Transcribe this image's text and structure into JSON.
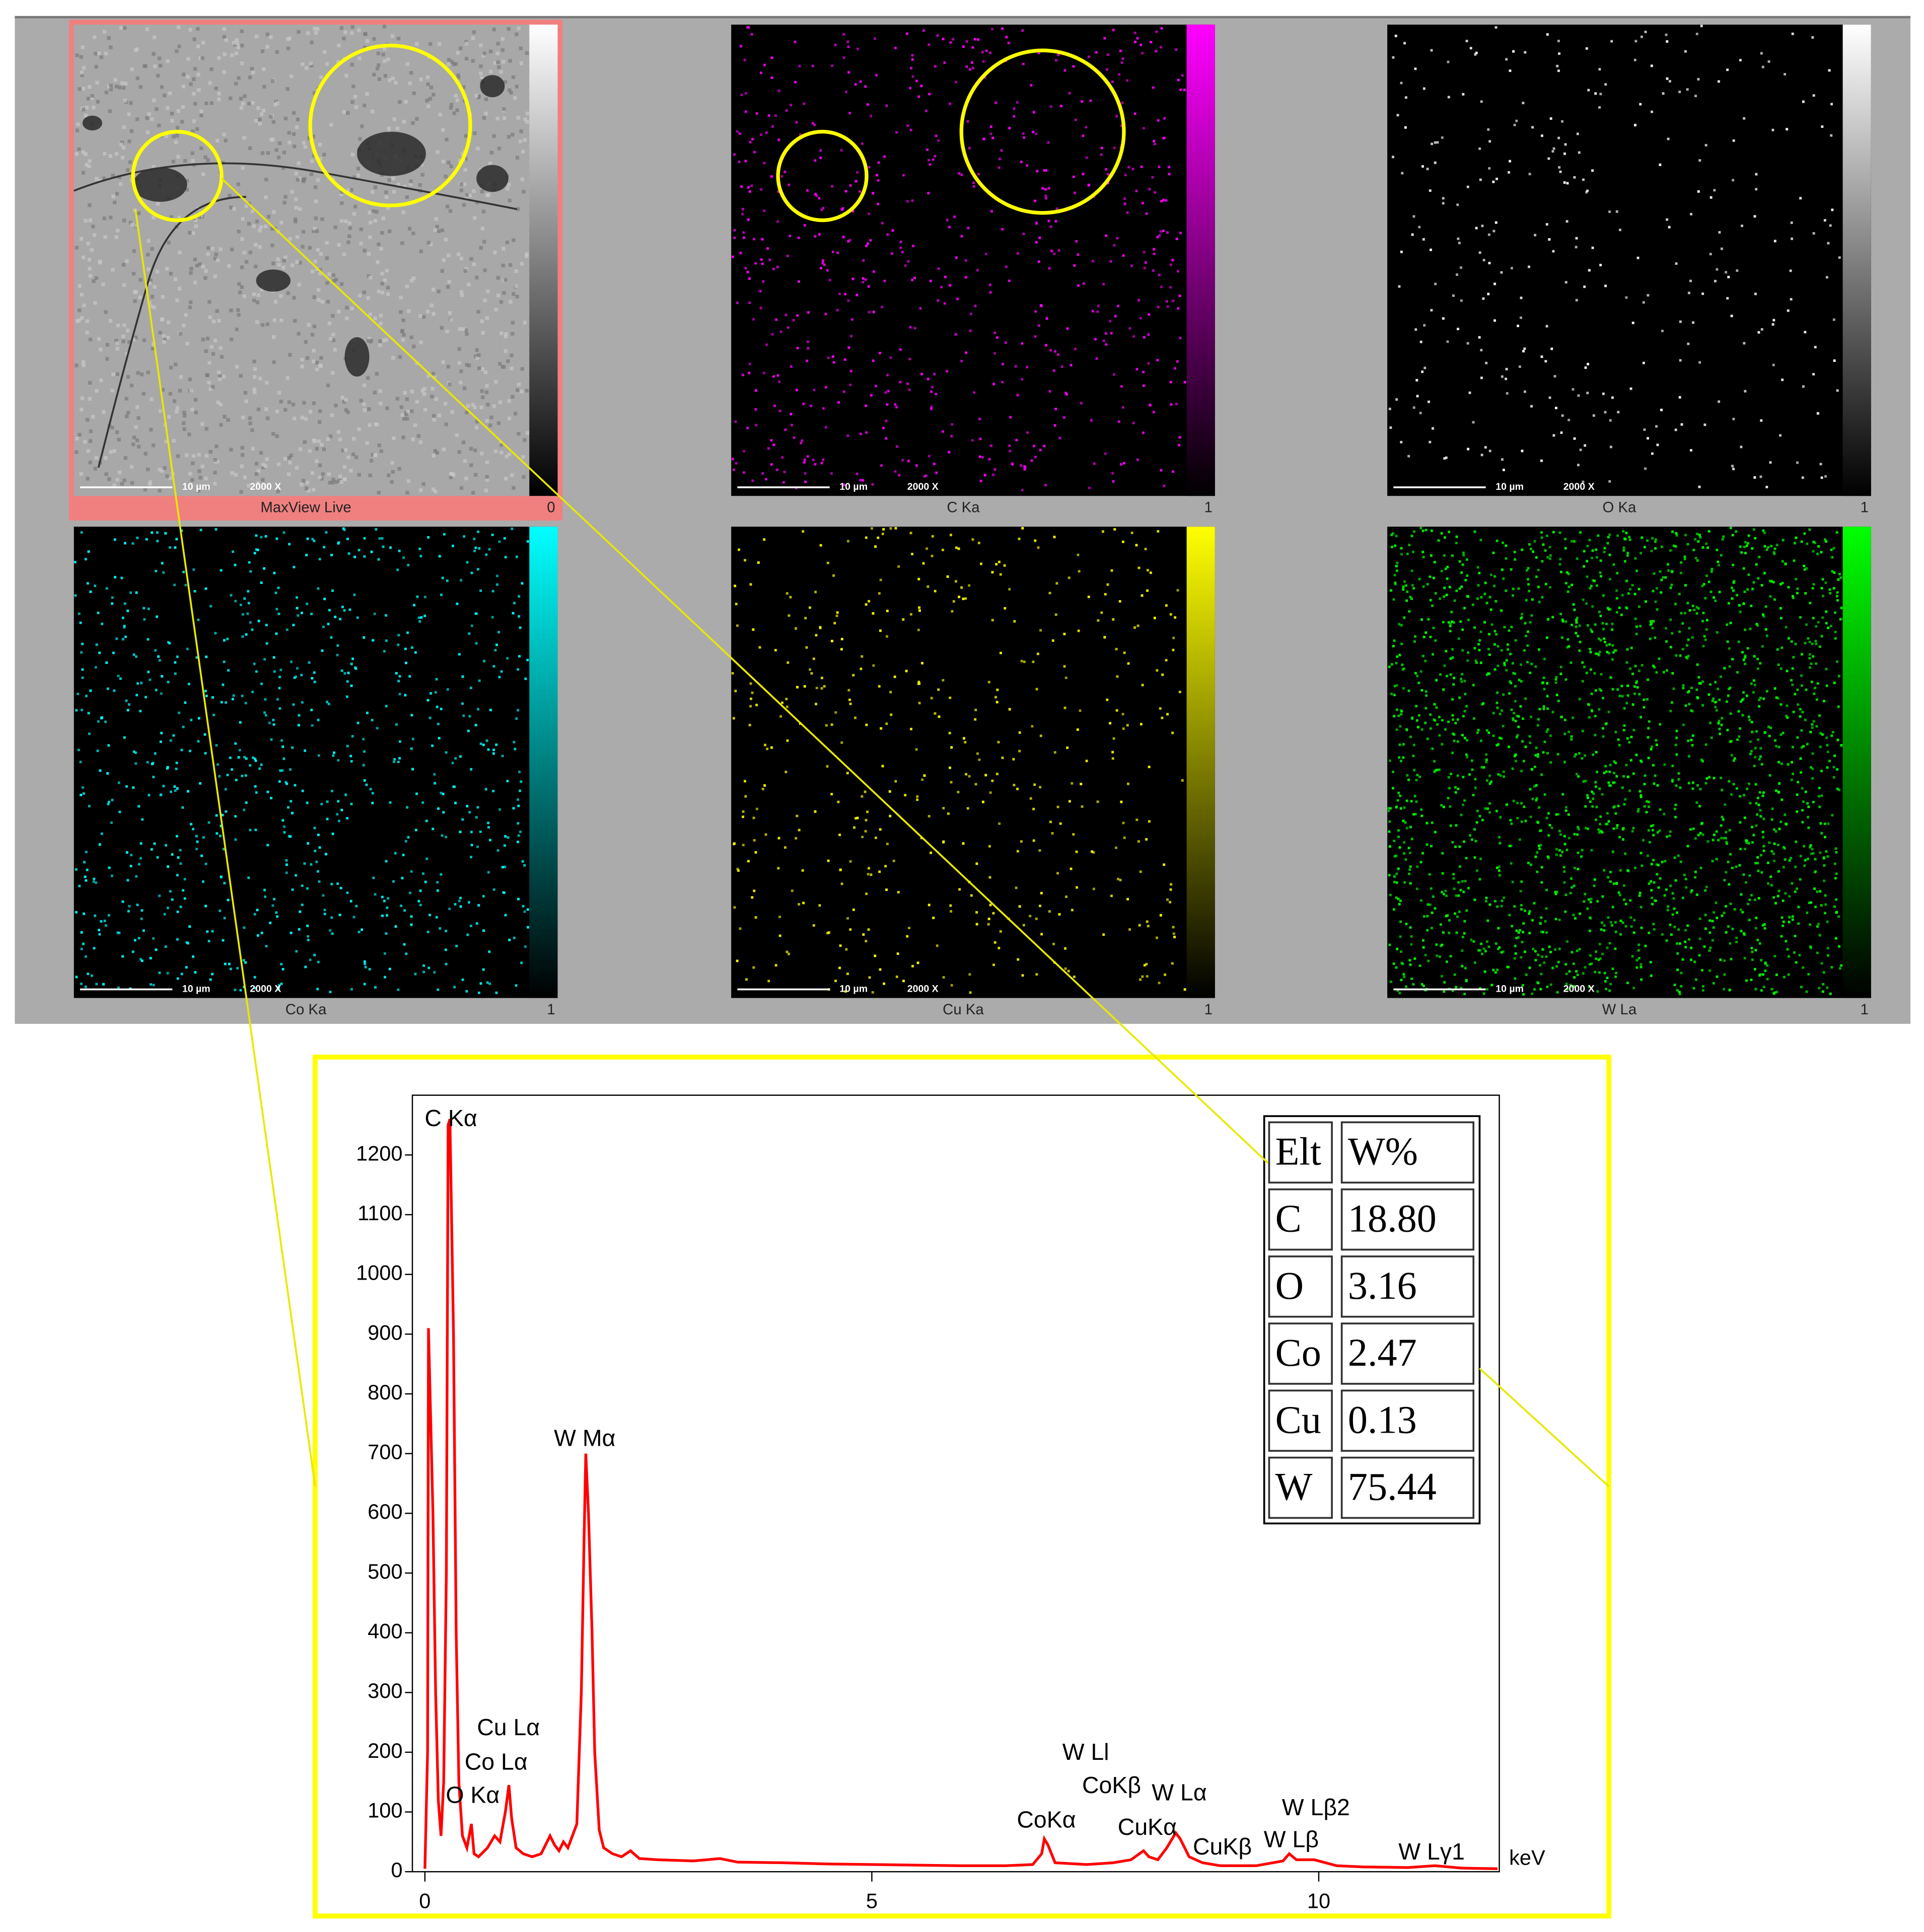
{
  "maps": [
    {
      "label": "MaxView Live",
      "max": "0",
      "color": "#ffffff",
      "scale": "10 µm",
      "magnification": "2000 X"
    },
    {
      "label": "C  Ka",
      "max": "1",
      "color": "#ff00ff",
      "scale": "10 µm",
      "magnification": "2000 X"
    },
    {
      "label": "O  Ka",
      "max": "1",
      "color": "#ffffff",
      "scale": "10 µm",
      "magnification": "2000 X"
    },
    {
      "label": "Co Ka",
      "max": "1",
      "color": "#00ffff",
      "scale": "10 µm",
      "magnification": "2000 X"
    },
    {
      "label": "Cu Ka",
      "max": "1",
      "color": "#ffff00",
      "scale": "10 µm",
      "magnification": "2000 X"
    },
    {
      "label": "W  La",
      "max": "1",
      "color": "#00ff00",
      "scale": "10 µm",
      "magnification": "2000 X"
    }
  ],
  "table": {
    "header": [
      "Elt",
      "W%"
    ],
    "rows": [
      [
        "C",
        "18.80"
      ],
      [
        "O",
        "3.16"
      ],
      [
        "Co",
        "2.47"
      ],
      [
        "Cu",
        "0.13"
      ],
      [
        "W",
        "75.44"
      ]
    ]
  },
  "chart_data": {
    "type": "line",
    "x_label": "keV",
    "color": "#ff0000",
    "x": [
      0.0,
      0.03,
      0.04,
      0.09,
      0.12,
      0.15,
      0.18,
      0.21,
      0.24,
      0.26,
      0.28,
      0.32,
      0.35,
      0.38,
      0.42,
      0.47,
      0.52,
      0.55,
      0.6,
      0.7,
      0.78,
      0.84,
      0.9,
      0.94,
      0.97,
      1.02,
      1.1,
      1.2,
      1.3,
      1.4,
      1.45,
      1.5,
      1.55,
      1.6,
      1.7,
      1.75,
      1.78,
      1.8,
      1.83,
      1.87,
      1.9,
      1.95,
      2.0,
      2.1,
      2.2,
      2.3,
      2.4,
      2.6,
      3.0,
      3.3,
      3.5,
      4.0,
      4.5,
      5.0,
      5.5,
      6.0,
      6.5,
      6.8,
      6.9,
      6.93,
      6.97,
      7.05,
      7.4,
      7.7,
      7.9,
      8.04,
      8.1,
      8.2,
      8.3,
      8.4,
      8.45,
      8.55,
      8.7,
      8.9,
      9.3,
      9.6,
      9.67,
      9.75,
      9.95,
      10.0,
      10.2,
      10.5,
      11.0,
      11.3,
      11.6,
      12.0
    ],
    "values": [
      5,
      200,
      910,
      600,
      300,
      120,
      60,
      150,
      500,
      1250,
      1260,
      900,
      400,
      150,
      60,
      40,
      80,
      30,
      25,
      40,
      60,
      50,
      100,
      145,
      90,
      40,
      30,
      25,
      30,
      60,
      45,
      35,
      50,
      40,
      80,
      300,
      550,
      700,
      600,
      400,
      200,
      70,
      40,
      30,
      25,
      35,
      22,
      20,
      18,
      22,
      16,
      15,
      13,
      12,
      11,
      10,
      10,
      12,
      30,
      55,
      45,
      15,
      12,
      15,
      20,
      35,
      25,
      20,
      40,
      65,
      55,
      25,
      15,
      10,
      10,
      18,
      30,
      20,
      20,
      18,
      10,
      8,
      7,
      10,
      6,
      5
    ],
    "xlim": [
      -0.14,
      12.02
    ],
    "ylim": [
      0,
      1300
    ],
    "xticks": [
      0,
      5,
      10
    ],
    "yticks": [
      0,
      100,
      200,
      300,
      400,
      500,
      600,
      700,
      800,
      900,
      1000,
      1100,
      1200
    ],
    "annotations": [
      "C Kα",
      "W Mα",
      "Cu Lα",
      "Co Lα",
      "O Kα",
      "W Ll",
      "CoKβ",
      "W Lα",
      "CoKα",
      "CuKα",
      "CuKβ",
      "W Lβ",
      "W Lβ2",
      "W Lγ1"
    ]
  }
}
